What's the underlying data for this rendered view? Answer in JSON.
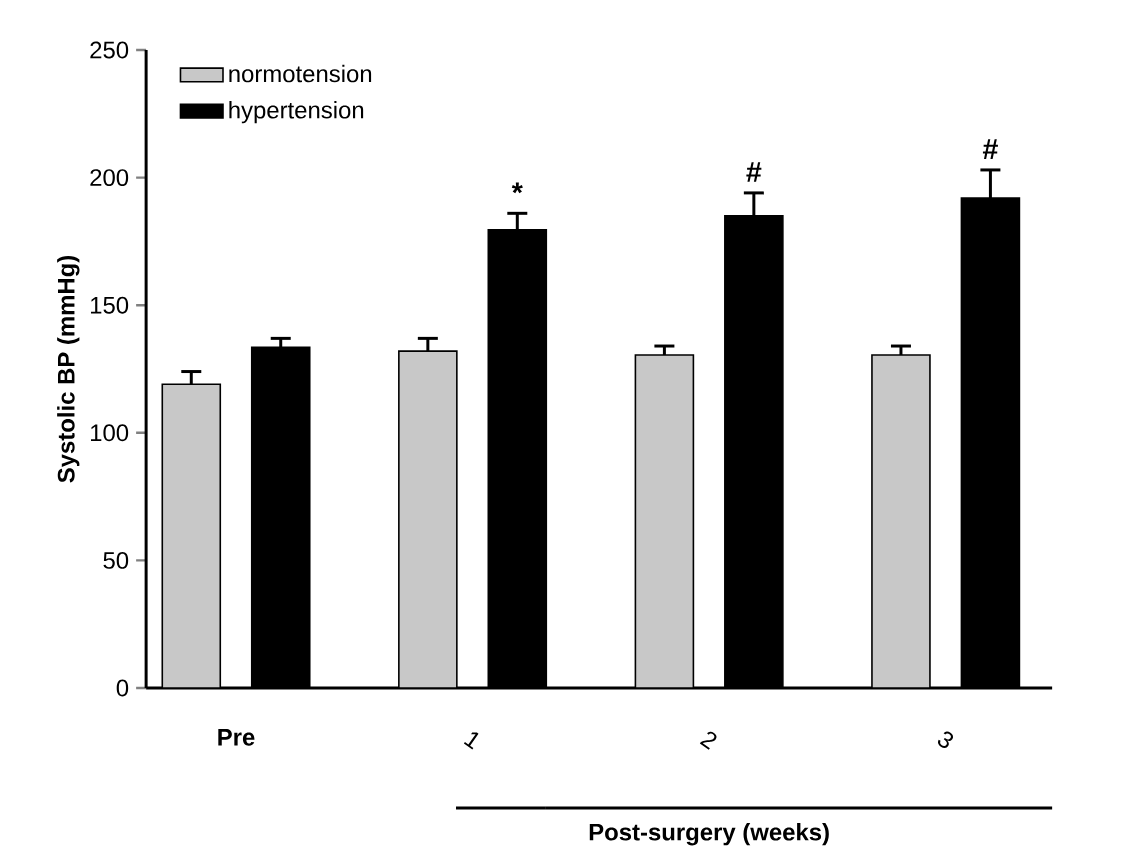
{
  "chart_data": {
    "type": "bar",
    "ylabel": "Systolic BP (mmHg)",
    "xlabel": "Post-surgery (weeks)",
    "categories": [
      "Pre",
      "1",
      "2",
      "3"
    ],
    "series": [
      {
        "name": "normotension",
        "color": "#c8c8c8",
        "values": [
          119,
          132,
          130.5,
          130.5
        ],
        "errors": [
          5,
          5,
          3.5,
          3.5
        ]
      },
      {
        "name": "hypertension",
        "color": "#000000",
        "values": [
          133.5,
          179.5,
          185,
          192
        ],
        "errors": [
          3.5,
          6.5,
          9,
          11
        ]
      }
    ],
    "ylim": [
      0,
      250
    ],
    "yticks": [
      0,
      50,
      100,
      150,
      200,
      250
    ],
    "grid": false,
    "legend": "top left",
    "annotations": [
      "*",
      "#",
      "#"
    ]
  }
}
